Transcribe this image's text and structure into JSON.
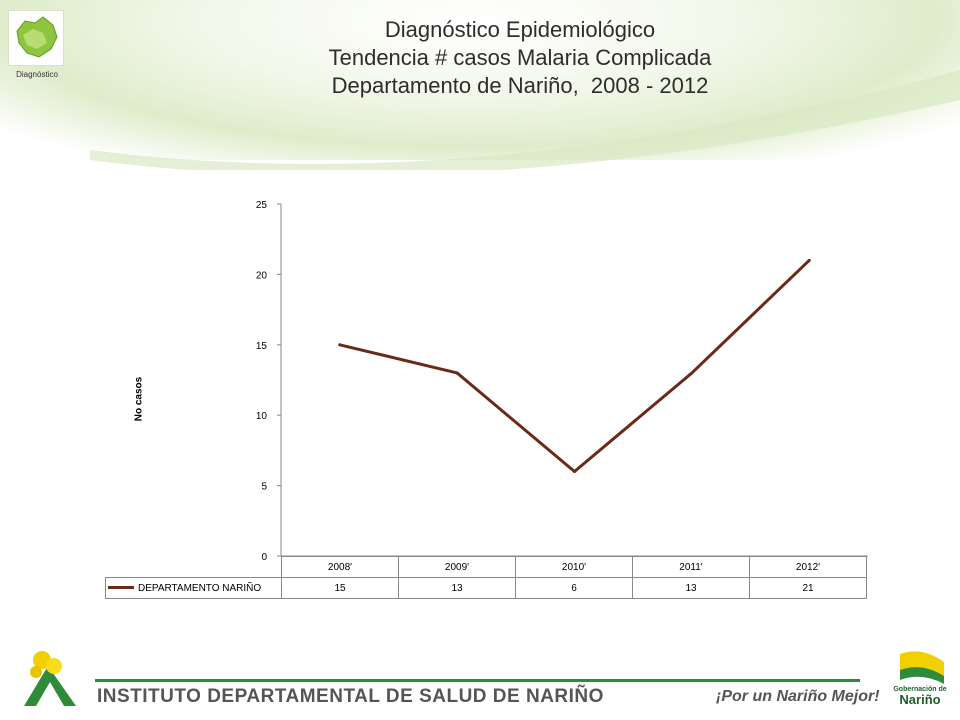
{
  "header": {
    "logo_caption": "Diagnóstico",
    "title_lines": [
      "Diagnóstico Epidemiológico",
      "Tendencia # casos Malaria Complicada",
      "Departamento de Nariño,  2008 - 2012"
    ]
  },
  "chart_data": {
    "type": "line",
    "x": [
      "2008'",
      "2009'",
      "2010'",
      "2011'",
      "2012'"
    ],
    "series": [
      {
        "name": "DEPARTAMENTO NARIÑO",
        "values": [
          15,
          13,
          6,
          13,
          21
        ],
        "color": "#6b2a17"
      }
    ],
    "ylabel": "No casos",
    "ylim": [
      0,
      25
    ],
    "yticks": [
      0,
      5,
      10,
      15,
      20,
      25
    ],
    "grid": false,
    "legend": "data table below chart"
  },
  "footer": {
    "institute": "INSTITUTO DEPARTAMENTAL DE SALUD DE NARIÑO",
    "slogan": "¡Por un Nariño Mejor!",
    "logo_small": "Gobernación de",
    "logo_big": "Nariño"
  },
  "colors": {
    "accent_green": "#2f8a3a",
    "line": "#6b2a17"
  }
}
